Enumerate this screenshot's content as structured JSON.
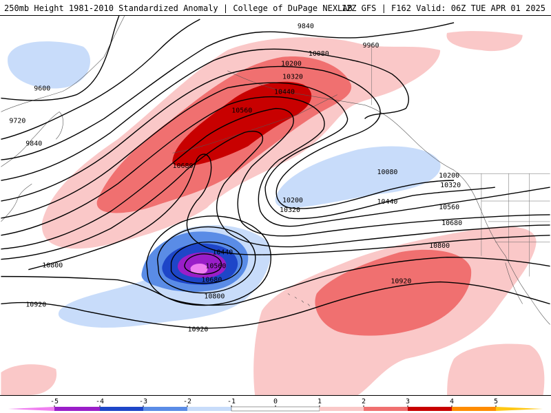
{
  "header": {
    "title": "250mb Height 1981-2010 Standardized Anomaly | College of DuPage NEXLAB",
    "run_info": "12Z GFS | F162 Valid: 06Z TUE APR 01 2025"
  },
  "colors": {
    "neg5": "#f07ff0",
    "neg4": "#9a1ec8",
    "neg3": "#1e46c8",
    "neg2": "#5a8ce6",
    "neg1": "#c8dcfa",
    "zero": "#ffffff",
    "pos1": "#fac8c8",
    "pos2": "#f07070",
    "pos3": "#c80000",
    "pos4": "#ff8c00",
    "pos5": "#ffc814"
  },
  "contour_labels": [
    {
      "id": "lbl-9600",
      "text": "9600"
    },
    {
      "id": "lbl-9720",
      "text": "9720"
    },
    {
      "id": "lbl-9840-w",
      "text": "9840"
    },
    {
      "id": "lbl-9840-n",
      "text": "9840"
    },
    {
      "id": "lbl-9960",
      "text": "9960"
    },
    {
      "id": "lbl-10080-n",
      "text": "10080"
    },
    {
      "id": "lbl-10200-n",
      "text": "10200"
    },
    {
      "id": "lbl-10320-n",
      "text": "10320"
    },
    {
      "id": "lbl-10440-n",
      "text": "10440"
    },
    {
      "id": "lbl-10560-n",
      "text": "10560"
    },
    {
      "id": "lbl-10680-w",
      "text": "10680"
    },
    {
      "id": "lbl-10080-e",
      "text": "10080"
    },
    {
      "id": "lbl-10200-e",
      "text": "10200"
    },
    {
      "id": "lbl-10320-e",
      "text": "10320"
    },
    {
      "id": "lbl-10200-t",
      "text": "10200"
    },
    {
      "id": "lbl-10320-t",
      "text": "10320"
    },
    {
      "id": "lbl-10440-e",
      "text": "10440"
    },
    {
      "id": "lbl-10560-e",
      "text": "10560"
    },
    {
      "id": "lbl-10680-e",
      "text": "10680"
    },
    {
      "id": "lbl-10800-e",
      "text": "10800"
    },
    {
      "id": "lbl-10920-e",
      "text": "10920"
    },
    {
      "id": "lbl-10800-w",
      "text": "10800"
    },
    {
      "id": "lbl-10920-w",
      "text": "10920"
    },
    {
      "id": "lbl-10920-s",
      "text": "10920"
    },
    {
      "id": "lbl-10440-low",
      "text": "10440"
    },
    {
      "id": "lbl-10560-low",
      "text": "10560"
    },
    {
      "id": "lbl-10680-low",
      "text": "10680"
    },
    {
      "id": "lbl-10800-low",
      "text": "10800"
    }
  ],
  "legend": {
    "ticks": [
      "-5",
      "-4",
      "-3",
      "-2",
      "-1",
      "0",
      "1",
      "2",
      "3",
      "4",
      "5"
    ]
  }
}
